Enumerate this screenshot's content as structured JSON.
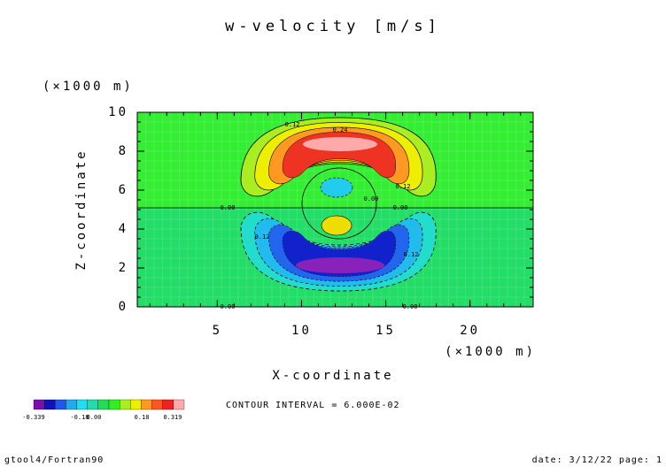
{
  "chart_data": {
    "type": "contour",
    "title": "w-velocity [m/s]",
    "x_label": "X-coordinate",
    "y_label": "Z-coordinate",
    "x_unit": "(×1000 m)",
    "y_unit": "(×1000 m)",
    "xlim": [
      0.25,
      23.75
    ],
    "xticks": [
      5,
      10,
      15,
      20
    ],
    "ylim": [
      0,
      10
    ],
    "yticks": [
      0,
      2,
      4,
      6,
      8,
      10
    ],
    "contour_labels": [
      "0.12",
      "0.24",
      "0.12",
      "0.00",
      "0.00",
      "0.00",
      "0.12",
      "0.12",
      "0.00",
      "0.00"
    ],
    "colorbar_labels": [
      "-0.339",
      "-0.18",
      "0.00",
      "0.18",
      "0.319"
    ],
    "note": "CONTOUR INTERVAL = 6.000E-02",
    "footer_left": "gtool4/Fortran90",
    "footer_right": "date: 3/12/22 page: 1"
  }
}
